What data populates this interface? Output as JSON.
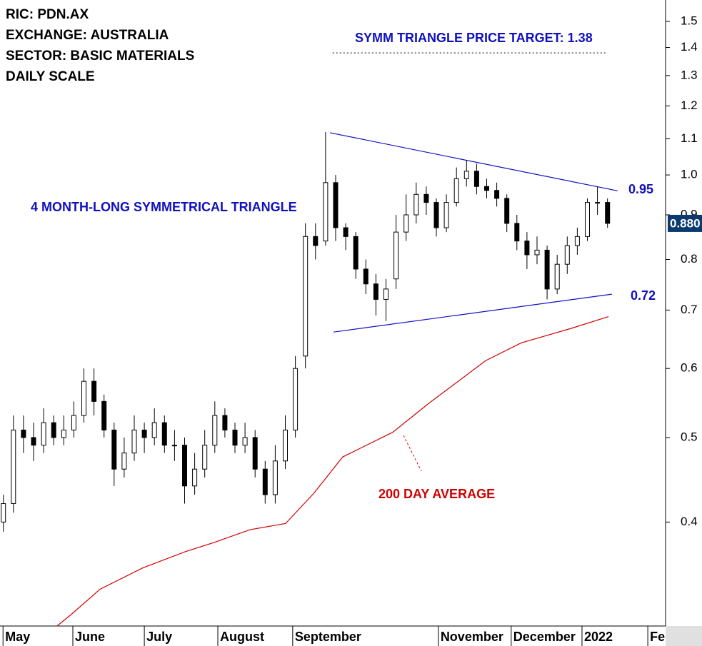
{
  "chart_data": {
    "type": "candlestick",
    "header_lines": [
      "RIC: PDN.AX",
      "EXCHANGE: AUSTRALIA",
      "SECTOR: BASIC MATERIALS",
      "DAILY SCALE"
    ],
    "annotations": {
      "target_text": "SYMM TRIANGLE PRICE TARGET: 1.38",
      "pattern_text": "4 MONTH-LONG SYMMETRICAL TRIANGLE",
      "ma_text": "200 DAY AVERAGE"
    },
    "target_value": 1.38,
    "levels": [
      0.95,
      0.72
    ],
    "last_price": {
      "value": 0.88,
      "label": "0.880"
    },
    "log_scale": true,
    "xlim": [
      0,
      198.3
    ],
    "ylim": [
      0.304,
      1.587
    ],
    "yticks": [
      0.4,
      0.5,
      0.6,
      0.7,
      0.8,
      0.9,
      {
        "value": 1,
        "label": "1.0"
      },
      1.1,
      1.2,
      1.3,
      1.4,
      1.5
    ],
    "xticks": [
      {
        "value": 0.9,
        "label": "May"
      },
      {
        "value": 21.7,
        "label": "June"
      },
      {
        "value": 43,
        "label": "July"
      },
      {
        "value": 64.9,
        "label": "August"
      },
      {
        "value": 87.2,
        "label": "September"
      },
      {
        "value": 130.6,
        "label": "November"
      },
      {
        "value": 152.3,
        "label": "December"
      },
      {
        "value": 173.4,
        "label": "2022"
      },
      {
        "value": 193,
        "label": "Fe"
      }
    ],
    "x": [
      1,
      4,
      7,
      10,
      13,
      16,
      19,
      22,
      25,
      28,
      31,
      34,
      37,
      40,
      43,
      46,
      49,
      52,
      55,
      58,
      61,
      64,
      67,
      70,
      73,
      76,
      79,
      82,
      85,
      88,
      91,
      94,
      97,
      100,
      103,
      106,
      109,
      112,
      115,
      118,
      121,
      124,
      127,
      130,
      133,
      136,
      139,
      142,
      145,
      148,
      151,
      154,
      157,
      160,
      163,
      166,
      169,
      172,
      175,
      178,
      181
    ],
    "open": [
      0.4,
      0.42,
      0.51,
      0.5,
      0.49,
      0.52,
      0.5,
      0.51,
      0.53,
      0.58,
      0.55,
      0.51,
      0.46,
      0.48,
      0.51,
      0.5,
      0.52,
      0.49,
      0.49,
      0.44,
      0.46,
      0.49,
      0.53,
      0.51,
      0.49,
      0.5,
      0.46,
      0.43,
      0.47,
      0.51,
      0.62,
      0.85,
      0.84,
      0.98,
      0.87,
      0.85,
      0.78,
      0.75,
      0.72,
      0.76,
      0.86,
      0.9,
      0.95,
      0.93,
      0.87,
      0.93,
      0.99,
      1.01,
      0.97,
      0.96,
      0.94,
      0.88,
      0.84,
      0.81,
      0.82,
      0.74,
      0.79,
      0.83,
      0.85,
      0.93,
      0.93
    ],
    "high": [
      0.43,
      0.53,
      0.53,
      0.52,
      0.54,
      0.53,
      0.53,
      0.55,
      0.6,
      0.6,
      0.56,
      0.52,
      0.5,
      0.53,
      0.52,
      0.54,
      0.53,
      0.51,
      0.5,
      0.48,
      0.51,
      0.55,
      0.54,
      0.52,
      0.52,
      0.51,
      0.47,
      0.49,
      0.53,
      0.62,
      0.88,
      0.88,
      1.12,
      1.0,
      0.88,
      0.86,
      0.8,
      0.77,
      0.76,
      0.9,
      0.95,
      0.98,
      0.97,
      0.94,
      0.95,
      1.02,
      1.04,
      1.03,
      0.99,
      0.98,
      0.95,
      0.9,
      0.86,
      0.85,
      0.83,
      0.81,
      0.85,
      0.87,
      0.94,
      0.97,
      0.94
    ],
    "low": [
      0.39,
      0.41,
      0.48,
      0.47,
      0.48,
      0.49,
      0.49,
      0.5,
      0.52,
      0.53,
      0.5,
      0.44,
      0.45,
      0.47,
      0.48,
      0.49,
      0.48,
      0.47,
      0.42,
      0.43,
      0.45,
      0.48,
      0.5,
      0.48,
      0.48,
      0.45,
      0.42,
      0.42,
      0.46,
      0.5,
      0.6,
      0.8,
      0.83,
      0.84,
      0.82,
      0.76,
      0.73,
      0.69,
      0.68,
      0.74,
      0.84,
      0.88,
      0.9,
      0.85,
      0.86,
      0.92,
      0.97,
      0.95,
      0.94,
      0.92,
      0.86,
      0.82,
      0.78,
      0.79,
      0.72,
      0.73,
      0.77,
      0.81,
      0.84,
      0.9,
      0.87
    ],
    "close": [
      0.42,
      0.51,
      0.5,
      0.49,
      0.52,
      0.5,
      0.51,
      0.53,
      0.58,
      0.55,
      0.51,
      0.46,
      0.48,
      0.51,
      0.5,
      0.52,
      0.49,
      0.49,
      0.44,
      0.46,
      0.49,
      0.53,
      0.51,
      0.49,
      0.5,
      0.46,
      0.43,
      0.47,
      0.51,
      0.6,
      0.85,
      0.83,
      0.98,
      0.87,
      0.85,
      0.78,
      0.75,
      0.72,
      0.74,
      0.86,
      0.9,
      0.95,
      0.93,
      0.87,
      0.93,
      0.99,
      1.01,
      0.97,
      0.96,
      0.94,
      0.88,
      0.84,
      0.81,
      0.82,
      0.74,
      0.79,
      0.83,
      0.85,
      0.93,
      0.93,
      0.88
    ],
    "moving_average": {
      "color": "#d00000",
      "x": [
        17.0,
        21.3,
        29.8,
        42.6,
        55.3,
        63.8,
        74.5,
        85.1,
        93.6,
        102.1,
        117.0,
        127.7,
        144.7,
        155.3,
        170.2,
        181.3
      ],
      "values": [
        0.304,
        0.3136,
        0.335,
        0.3545,
        0.37,
        0.379,
        0.392,
        0.3985,
        0.432,
        0.475,
        0.507,
        0.547,
        0.6125,
        0.642,
        0.667,
        0.688
      ]
    },
    "trendlines": {
      "color": "#1010c0",
      "upper": {
        "x": [
          98.3,
          184.0
        ],
        "values": [
          1.118,
          0.959
        ]
      },
      "lower": {
        "x": [
          99.4,
          182.3
        ],
        "values": [
          0.6605,
          0.73
        ]
      }
    },
    "target_line_x": [
      99.1,
      180.9
    ]
  }
}
